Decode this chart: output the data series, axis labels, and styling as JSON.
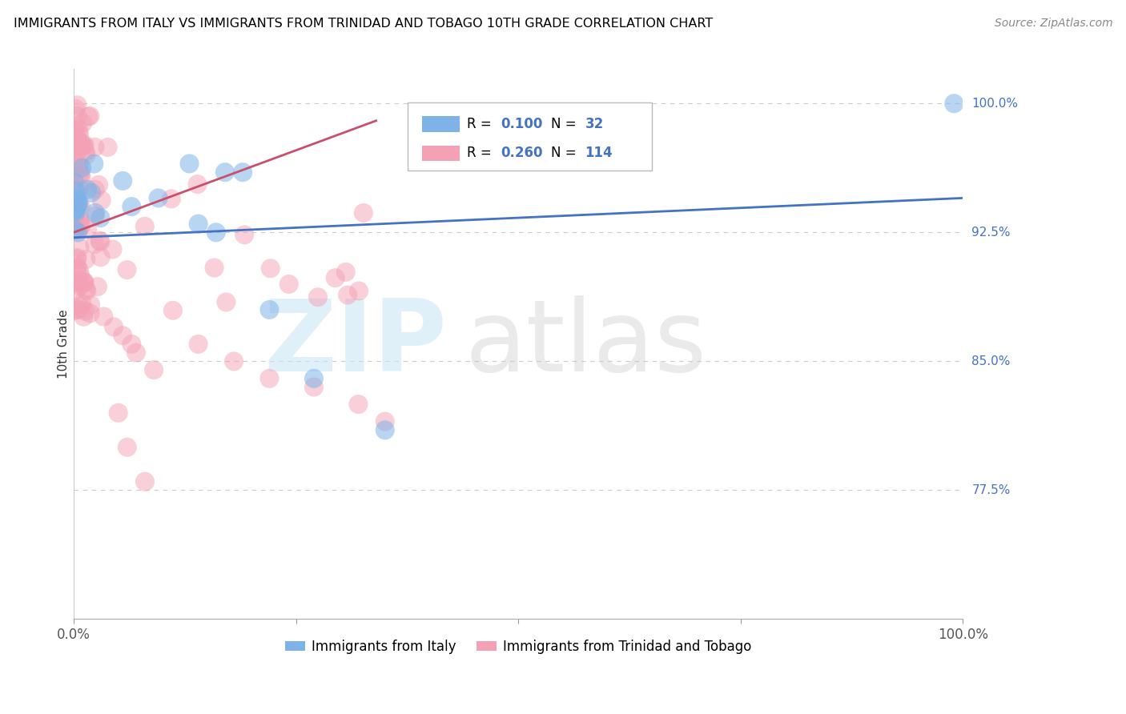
{
  "title": "IMMIGRANTS FROM ITALY VS IMMIGRANTS FROM TRINIDAD AND TOBAGO 10TH GRADE CORRELATION CHART",
  "source": "Source: ZipAtlas.com",
  "ylabel": "10th Grade",
  "ylabel_right_labels": [
    "100.0%",
    "92.5%",
    "85.0%",
    "77.5%"
  ],
  "ylabel_right_positions": [
    1.0,
    0.925,
    0.85,
    0.775
  ],
  "R_italy": 0.1,
  "N_italy": 32,
  "R_tt": 0.26,
  "N_tt": 114,
  "color_italy": "#7EB3E8",
  "color_tt": "#F4A0B5",
  "color_italy_line": "#4472C4",
  "color_tt_line": "#C9506A",
  "background_color": "#FFFFFF",
  "xlim": [
    0.0,
    1.0
  ],
  "ylim": [
    0.7,
    1.02
  ],
  "italy_line_x0": 0.0,
  "italy_line_x1": 1.0,
  "italy_line_y0": 0.922,
  "italy_line_y1": 0.945,
  "tt_line_x0": 0.0,
  "tt_line_x1": 0.34,
  "tt_line_y0": 0.925,
  "tt_line_y1": 0.99
}
